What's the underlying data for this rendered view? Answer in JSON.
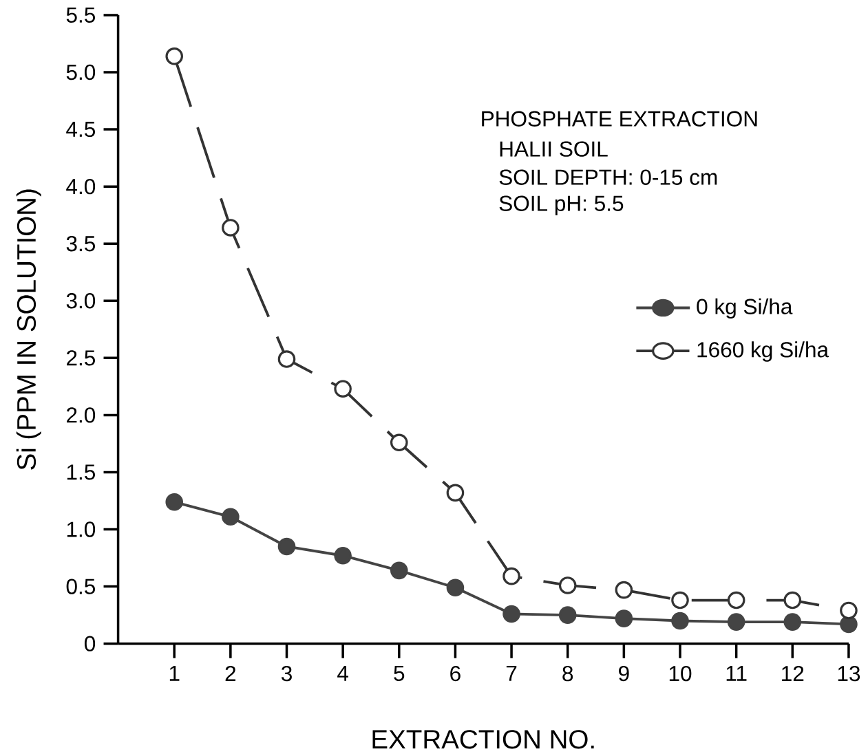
{
  "chart_data": {
    "type": "line",
    "annotations": [
      "PHOSPHATE EXTRACTION",
      "HALII SOIL",
      "SOIL DEPTH: 0-15 cm",
      "SOIL pH: 5.5"
    ],
    "xlabel": "EXTRACTION NO.",
    "ylabel": "Si (PPM IN SOLUTION)",
    "x": [
      1,
      2,
      3,
      4,
      5,
      6,
      7,
      8,
      9,
      10,
      11,
      12,
      13
    ],
    "series": [
      {
        "name": "0 kg Si/ha",
        "color": "#444444",
        "line_style": "solid",
        "values": [
          1.24,
          1.11,
          0.85,
          0.77,
          0.64,
          0.49,
          0.26,
          0.25,
          0.22,
          0.2,
          0.19,
          0.19,
          0.17
        ]
      },
      {
        "name": "1660 kg Si/ha",
        "color": "#333333",
        "line_style": "dashed",
        "values": [
          5.14,
          3.64,
          2.49,
          2.23,
          1.76,
          1.32,
          0.59,
          0.51,
          0.47,
          0.38,
          0.38,
          0.38,
          0.29
        ]
      }
    ],
    "marker": "circle",
    "legend": "right",
    "grid": false,
    "xlim": [
      0,
      13
    ],
    "ylim": [
      0,
      5.5
    ],
    "xticks": [
      1,
      2,
      3,
      4,
      5,
      6,
      7,
      8,
      9,
      10,
      11,
      12,
      13
    ],
    "yticks": [
      0,
      0.5,
      {
        "value": 1,
        "label": "1.0"
      },
      1.5,
      {
        "value": 2,
        "label": "2.0"
      },
      2.5,
      {
        "value": 3,
        "label": "3.0"
      },
      3.5,
      {
        "value": 4,
        "label": "4.0"
      },
      4.5,
      {
        "value": 5,
        "label": "5.0"
      },
      5.5
    ]
  }
}
